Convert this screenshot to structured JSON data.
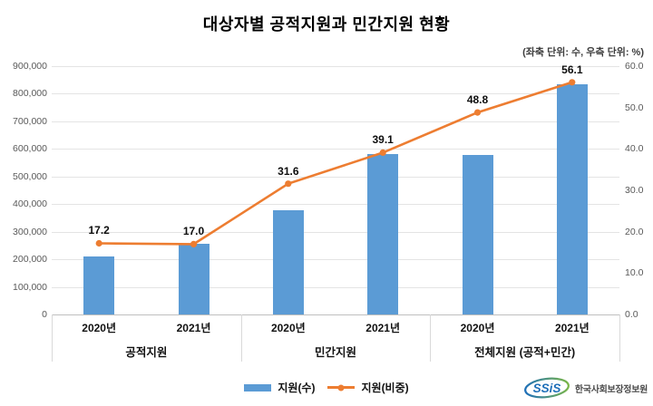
{
  "title": "대상자별 공적지원과 민간지원 현황",
  "subtitle": "(좌축 단위: 수, 우측 단위: %)",
  "legend": {
    "bar_label": "지원(수)",
    "line_label": "지원(비중)"
  },
  "footer": {
    "logo_text": "SSiS",
    "org_name": "한국사회보장정보원"
  },
  "colors": {
    "bar": "#5B9BD5",
    "line": "#ED7D31",
    "grid": "#E4E4E4",
    "axis_line": "#BFBFBF",
    "tick_text": "#595959",
    "logo_blue": "#1E6FB8",
    "logo_green": "#7AB648"
  },
  "chart_data": {
    "type": "bar",
    "title": "대상자별 공적지원과 민간지원 현황",
    "subtitle": "(좌축 단위: 수, 우측 단위: %)",
    "group_labels": [
      "공적지원",
      "민간지원",
      "전체지원 (공적+민간)"
    ],
    "categories": [
      "2020년",
      "2021년",
      "2020년",
      "2021년",
      "2020년",
      "2021년"
    ],
    "series": [
      {
        "name": "지원(수)",
        "chart": "bar",
        "axis": "left",
        "values": [
          209000,
          256000,
          379000,
          582000,
          578000,
          834000
        ]
      },
      {
        "name": "지원(비중)",
        "chart": "line",
        "axis": "right",
        "values": [
          17.2,
          17.0,
          31.6,
          39.1,
          48.8,
          56.1
        ],
        "point_labels": [
          "17.2",
          "17.0",
          "31.6",
          "39.1",
          "48.8",
          "56.1"
        ]
      }
    ],
    "left_axis": {
      "min": 0,
      "max": 900000,
      "step": 100000,
      "tick_labels": [
        "0",
        "100,000",
        "200,000",
        "300,000",
        "400,000",
        "500,000",
        "600,000",
        "700,000",
        "800,000",
        "900,000"
      ]
    },
    "right_axis": {
      "min": 0,
      "max": 60,
      "step": 10,
      "tick_labels": [
        "0.0",
        "10.0",
        "20.0",
        "30.0",
        "40.0",
        "50.0",
        "60.0"
      ]
    },
    "grid": true,
    "legend_position": "bottom"
  }
}
